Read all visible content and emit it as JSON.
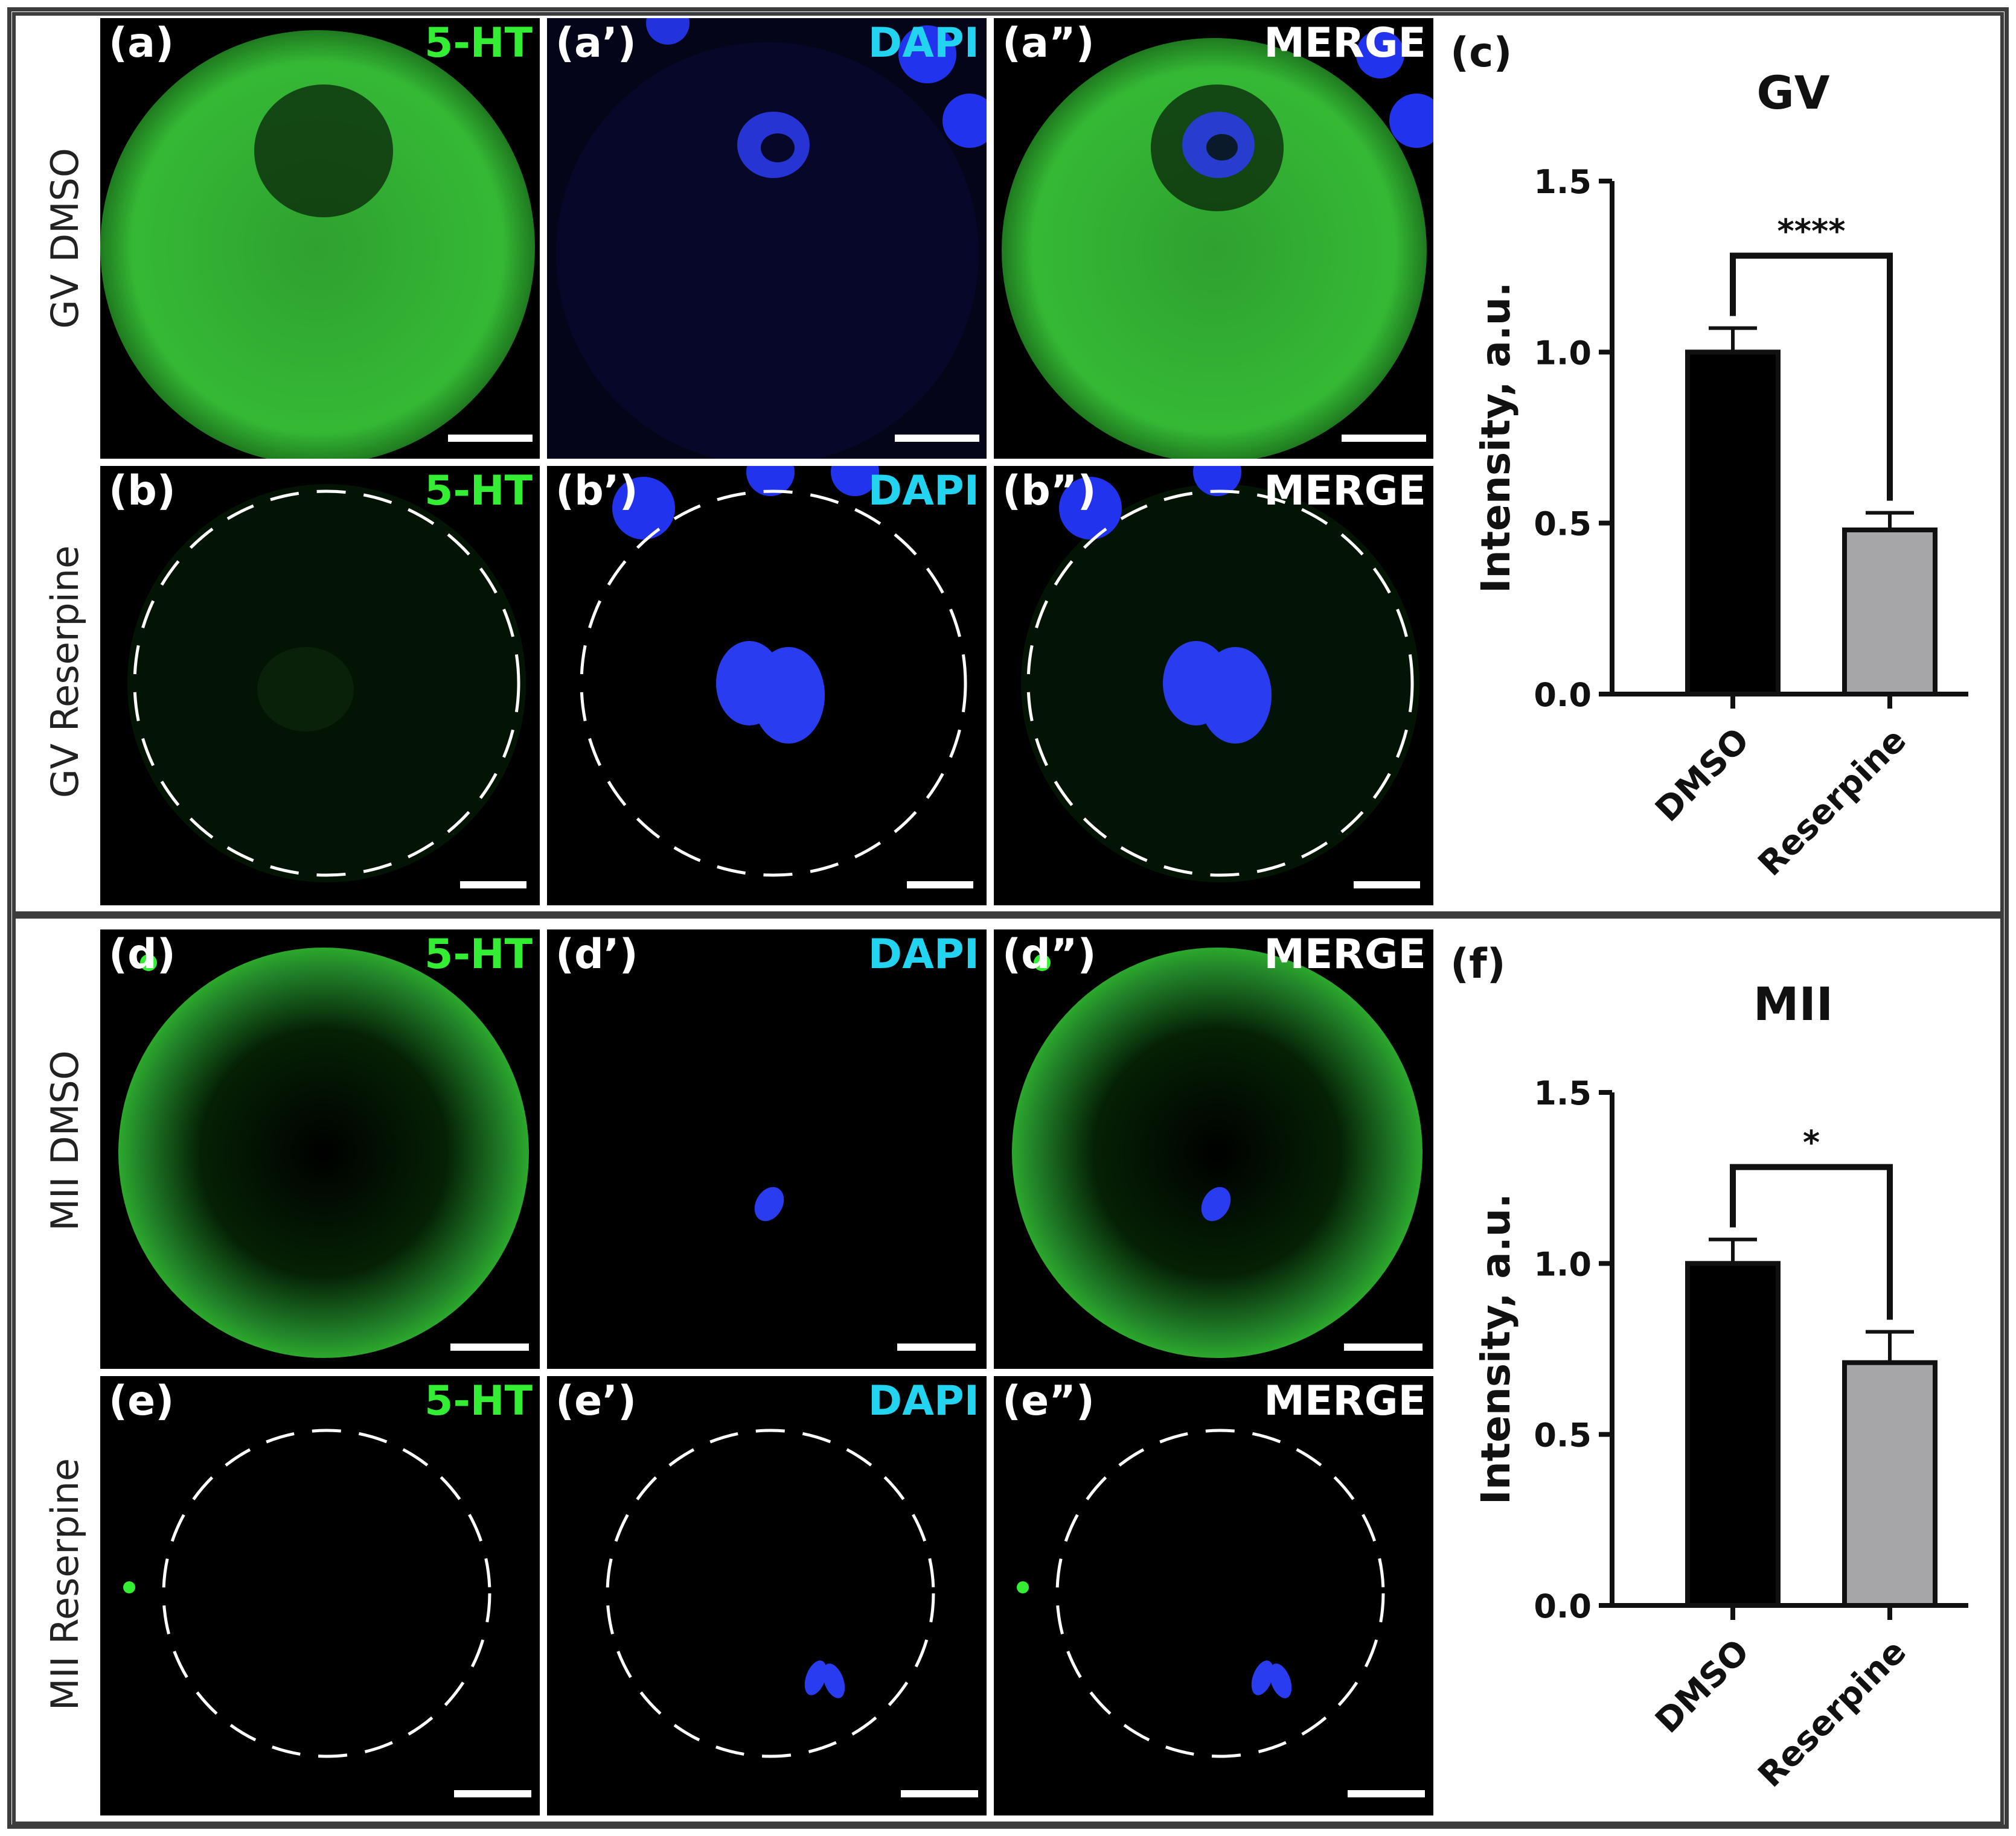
{
  "rows": [
    {
      "label": "GV DMSO"
    },
    {
      "label": "GV Reserpine"
    },
    {
      "label": "MII DMSO"
    },
    {
      "label": "MII Reserpine"
    }
  ],
  "panels": [
    {
      "id": "(a)",
      "channel": "5-HT"
    },
    {
      "id": "(a’)",
      "channel": "DAPI"
    },
    {
      "id": "(a”)",
      "channel": "MERGE"
    },
    {
      "id": "(b)",
      "channel": "5-HT"
    },
    {
      "id": "(b’)",
      "channel": "DAPI"
    },
    {
      "id": "(b”)",
      "channel": "MERGE"
    },
    {
      "id": "(d)",
      "channel": "5-HT"
    },
    {
      "id": "(d’)",
      "channel": "DAPI"
    },
    {
      "id": "(d”)",
      "channel": "MERGE"
    },
    {
      "id": "(e)",
      "channel": "5-HT"
    },
    {
      "id": "(e’)",
      "channel": "DAPI"
    },
    {
      "id": "(e”)",
      "channel": "MERGE"
    }
  ],
  "colors": {
    "green": "#33ee33",
    "dapi_label": "#22d4f0",
    "nucleus_blue": "#2233ff",
    "dmso_bar": "#000000",
    "reserpine_bar": "#a6a6a8"
  },
  "chart_data": [
    {
      "panel": "(c)",
      "type": "bar",
      "title": "GV",
      "categories": [
        "DMSO",
        "Reserpine"
      ],
      "values": [
        1.0,
        0.48
      ],
      "errors": [
        0.07,
        0.05
      ],
      "ylabel": "Intensity, a.u.",
      "ylim": [
        0,
        1.5
      ],
      "yticks": [
        "0.0",
        "0.5",
        "1.0",
        "1.5"
      ],
      "significance": "****"
    },
    {
      "panel": "(f)",
      "type": "bar",
      "title": "MII",
      "categories": [
        "DMSO",
        "Reserpine"
      ],
      "values": [
        1.0,
        0.71
      ],
      "errors": [
        0.07,
        0.09
      ],
      "ylabel": "Intensity, a.u.",
      "ylim": [
        0,
        1.5
      ],
      "yticks": [
        "0.0",
        "0.5",
        "1.0",
        "1.5"
      ],
      "significance": "*"
    }
  ]
}
